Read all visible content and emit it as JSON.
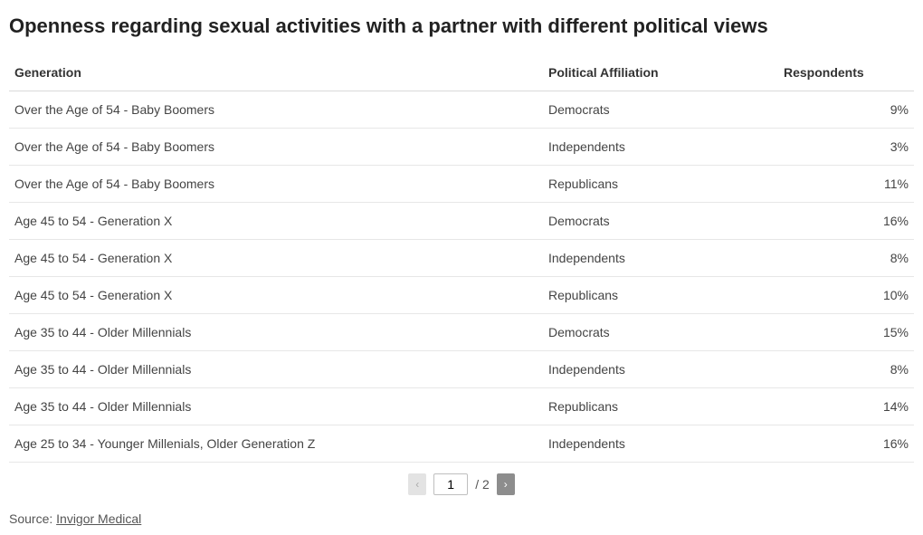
{
  "title": "Openness regarding sexual activities with a partner with different political views",
  "table": {
    "columns": {
      "generation": "Generation",
      "affiliation": "Political Affiliation",
      "respondents": "Respondents"
    },
    "column_widths_pct": [
      59,
      26,
      15
    ],
    "header_color": "#333333",
    "row_border_color": "#e7e7e7",
    "font_size": 14,
    "rows": [
      {
        "generation": "Over the Age of 54 - Baby Boomers",
        "affiliation": "Democrats",
        "respondents": "9%"
      },
      {
        "generation": "Over the Age of 54 - Baby Boomers",
        "affiliation": "Independents",
        "respondents": "3%"
      },
      {
        "generation": "Over the Age of 54 - Baby Boomers",
        "affiliation": "Republicans",
        "respondents": "11%"
      },
      {
        "generation": "Age 45 to 54 - Generation X",
        "affiliation": "Democrats",
        "respondents": "16%"
      },
      {
        "generation": "Age 45 to 54 - Generation X",
        "affiliation": "Independents",
        "respondents": "8%"
      },
      {
        "generation": "Age 45 to 54 - Generation X",
        "affiliation": "Republicans",
        "respondents": "10%"
      },
      {
        "generation": "Age 35 to 44 - Older Millennials",
        "affiliation": "Democrats",
        "respondents": "15%"
      },
      {
        "generation": "Age 35 to 44 - Older Millennials",
        "affiliation": "Independents",
        "respondents": "8%"
      },
      {
        "generation": "Age 35 to 44 - Older Millennials",
        "affiliation": "Republicans",
        "respondents": "14%"
      },
      {
        "generation": "Age 25 to 34 - Younger Millenials, Older Generation Z",
        "affiliation": "Independents",
        "respondents": "16%"
      }
    ]
  },
  "pagination": {
    "prev_symbol": "‹",
    "next_symbol": "›",
    "current": "1",
    "total": "2",
    "separator": "/ ",
    "prev_enabled": false,
    "next_enabled": true,
    "disabled_bg": "#e3e3e3",
    "disabled_fg": "#aaaaaa",
    "enabled_bg": "#8d8d8d",
    "enabled_fg": "#ffffff"
  },
  "source": {
    "label": "Source: ",
    "link_text": "Invigor Medical"
  },
  "colors": {
    "background": "#ffffff",
    "text": "#333333",
    "title": "#222222"
  }
}
